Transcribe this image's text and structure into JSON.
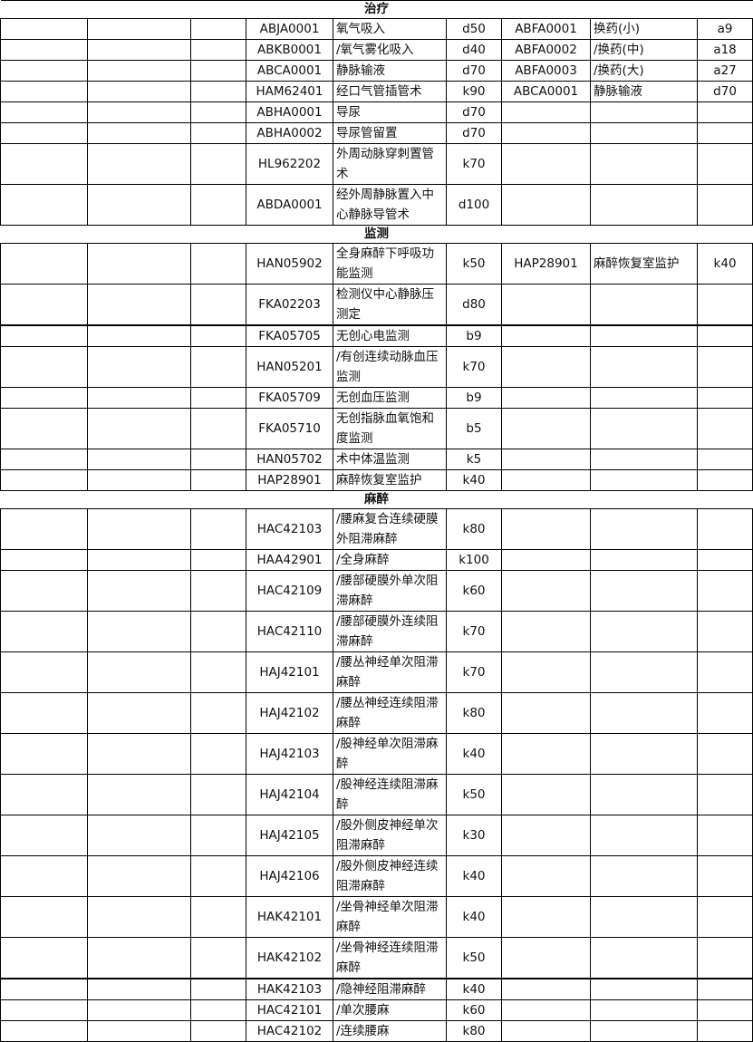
{
  "sections": [
    {
      "title": "治疗",
      "rows": [
        {
          "code": "ABJA0001",
          "name": "氧气吸入",
          "price": "d50",
          "code2": "ABFA0001",
          "name2": "换药(小)",
          "price2": "a9"
        },
        {
          "code": "ABKB0001",
          "name": "/氧气雾化吸入",
          "price": "d40",
          "code2": "ABFA0002",
          "name2": "/换药(中)",
          "price2": "a18"
        },
        {
          "code": "ABCA0001",
          "name": "静脉输液",
          "price": "d70",
          "code2": "ABFA0003",
          "name2": "/换药(大)",
          "price2": "a27"
        },
        {
          "code": "HAM62401",
          "name": "经口气管插管术",
          "price": "k90",
          "code2": "ABCA0001",
          "name2": "静脉输液",
          "price2": "d70"
        },
        {
          "code": "ABHA0001",
          "name": "导尿",
          "price": "d70"
        },
        {
          "code": "ABHA0002",
          "name": "导尿管留置",
          "price": "d70"
        },
        {
          "code": "HL962202",
          "name": "外周动脉穿刺置管术",
          "price": "k70"
        },
        {
          "code": "ABDA0001",
          "name": "经外周静脉置入中心静脉导管术",
          "price": "d100"
        }
      ]
    },
    {
      "title": "监测",
      "rows": [
        {
          "code": "HAN05902",
          "name": "全身麻醉下呼吸功能监测",
          "price": "k50",
          "code2": "HAP28901",
          "name2": "麻醉恢复室监护",
          "price2": "k40"
        },
        {
          "code": "FKA02203",
          "name": "检测仪中心静脉压测定",
          "price": "d80",
          "thick": true
        },
        {
          "code": "FKA05705",
          "name": "无创心电监测",
          "price": "b9"
        },
        {
          "code": "HAN05201",
          "name": "/有创连续动脉血压监测",
          "price": "k70"
        },
        {
          "code": "FKA05709",
          "name": "无创血压监测",
          "price": "b9"
        },
        {
          "code": "FKA05710",
          "name": "无创指脉血氧饱和度监测",
          "price": "b5"
        },
        {
          "code": "HAN05702",
          "name": "术中体温监测",
          "price": "k5"
        },
        {
          "code": "HAP28901",
          "name": "麻醉恢复室监护",
          "price": "k40"
        }
      ]
    },
    {
      "title": "麻醉",
      "rows": [
        {
          "code": "HAC42103",
          "name": "/腰麻复合连续硬膜外阻滞麻醉",
          "price": "k80"
        },
        {
          "code": "HAA42901",
          "name": "/全身麻醉",
          "price": "k100"
        },
        {
          "code": "HAC42109",
          "name": "/腰部硬膜外单次阻滞麻醉",
          "price": "k60"
        },
        {
          "code": "HAC42110",
          "name": "/腰部硬膜外连续阻滞麻醉",
          "price": "k70"
        },
        {
          "code": "HAJ42101",
          "name": "/腰丛神经单次阻滞麻醉",
          "price": "k70"
        },
        {
          "code": "HAJ42102",
          "name": "/腰丛神经连续阻滞麻醉",
          "price": "k80"
        },
        {
          "code": "HAJ42103",
          "name": "/股神经单次阻滞麻醉",
          "price": "k40"
        },
        {
          "code": "HAJ42104",
          "name": "/股神经连续阻滞麻醉",
          "price": "k50"
        },
        {
          "code": "HAJ42105",
          "name": "/股外侧皮神经单次阻滞麻醉",
          "price": "k30"
        },
        {
          "code": "HAJ42106",
          "name": "/股外侧皮神经连续阻滞麻醉",
          "price": "k40"
        },
        {
          "code": "HAK42101",
          "name": "/坐骨神经单次阻滞麻醉",
          "price": "k40"
        },
        {
          "code": "HAK42102",
          "name": "/坐骨神经连续阻滞麻醉",
          "price": "k50",
          "thick": true
        },
        {
          "code": "HAK42103",
          "name": "/隐神经阻滞麻醉",
          "price": "k40"
        },
        {
          "code": "HAC42101",
          "name": "/单次腰麻",
          "price": "k60"
        },
        {
          "code": "HAC42102",
          "name": "/连续腰麻",
          "price": "k80"
        }
      ]
    }
  ]
}
